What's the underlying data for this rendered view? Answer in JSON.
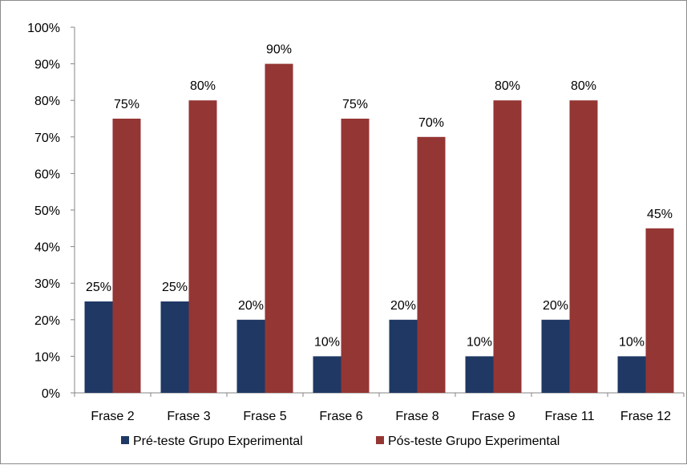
{
  "chart_data": {
    "type": "bar",
    "title": "",
    "xlabel": "",
    "ylabel": "",
    "categories": [
      "Frase 2",
      "Frase 3",
      "Frase 5",
      "Frase 6",
      "Frase 8",
      "Frase 9",
      "Frase 11",
      "Frase 12"
    ],
    "series": [
      {
        "name": "Pré-teste Grupo Experimental",
        "color": "#1f3864",
        "values": [
          25,
          25,
          20,
          10,
          20,
          10,
          20,
          10
        ],
        "labels": [
          "25%",
          "25%",
          "20%",
          "10%",
          "20%",
          "10%",
          "20%",
          "10%"
        ]
      },
      {
        "name": "Pós-teste Grupo Experimental",
        "color": "#943634",
        "values": [
          75,
          80,
          90,
          75,
          70,
          80,
          80,
          45
        ],
        "labels": [
          "75%",
          "80%",
          "90%",
          "75%",
          "70%",
          "80%",
          "80%",
          "45%"
        ]
      }
    ],
    "ylim": [
      0,
      100
    ],
    "yticks": [
      "0%",
      "10%",
      "20%",
      "30%",
      "40%",
      "50%",
      "60%",
      "70%",
      "80%",
      "90%",
      "100%"
    ],
    "grid": false,
    "legend_position": "bottom"
  }
}
